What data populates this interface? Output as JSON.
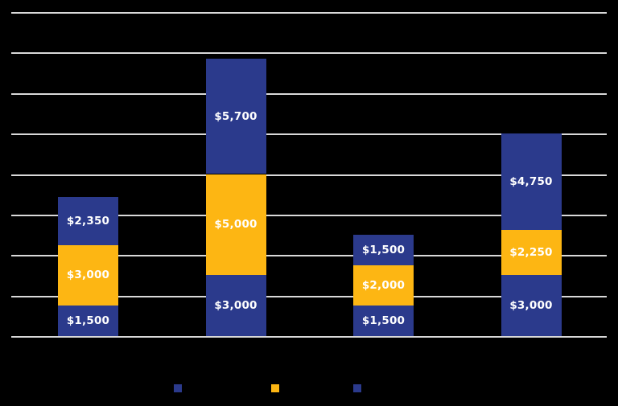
{
  "chart": {
    "background_color": "#000000",
    "gridline_color": "#D9D9D9",
    "data_label_color": "#FFFFFF",
    "blue_color": "#2B3A8C",
    "orange_color": "#FDB613"
  },
  "chart_data": {
    "type": "bar",
    "stacked": true,
    "n_bars": 4,
    "ylim": [
      0,
      16000
    ],
    "y_tick_step": 2000,
    "grid": true,
    "legend_position": "bottom",
    "series": [
      {
        "color": "#2B3A8C",
        "values": [
          1500,
          3000,
          1500,
          3000
        ]
      },
      {
        "color": "#FDB613",
        "values": [
          3000,
          5000,
          2000,
          2250
        ]
      },
      {
        "color": "#2B3A8C",
        "values": [
          2350,
          5700,
          1500,
          4750
        ]
      }
    ],
    "data_labels": [
      [
        "$1,500",
        "$3,000",
        "$2,350"
      ],
      [
        "$3,000",
        "$5,000",
        "$5,700"
      ],
      [
        "$1,500",
        "$2,000",
        "$1,500"
      ],
      [
        "$3,000",
        "$2,250",
        "$4,750"
      ]
    ],
    "bar_totals": [
      6850,
      13700,
      5000,
      10000
    ],
    "legend": [
      {
        "color": "#2B3A8C"
      },
      {
        "color": "#FDB613"
      },
      {
        "color": "#2B3A8C"
      }
    ]
  }
}
